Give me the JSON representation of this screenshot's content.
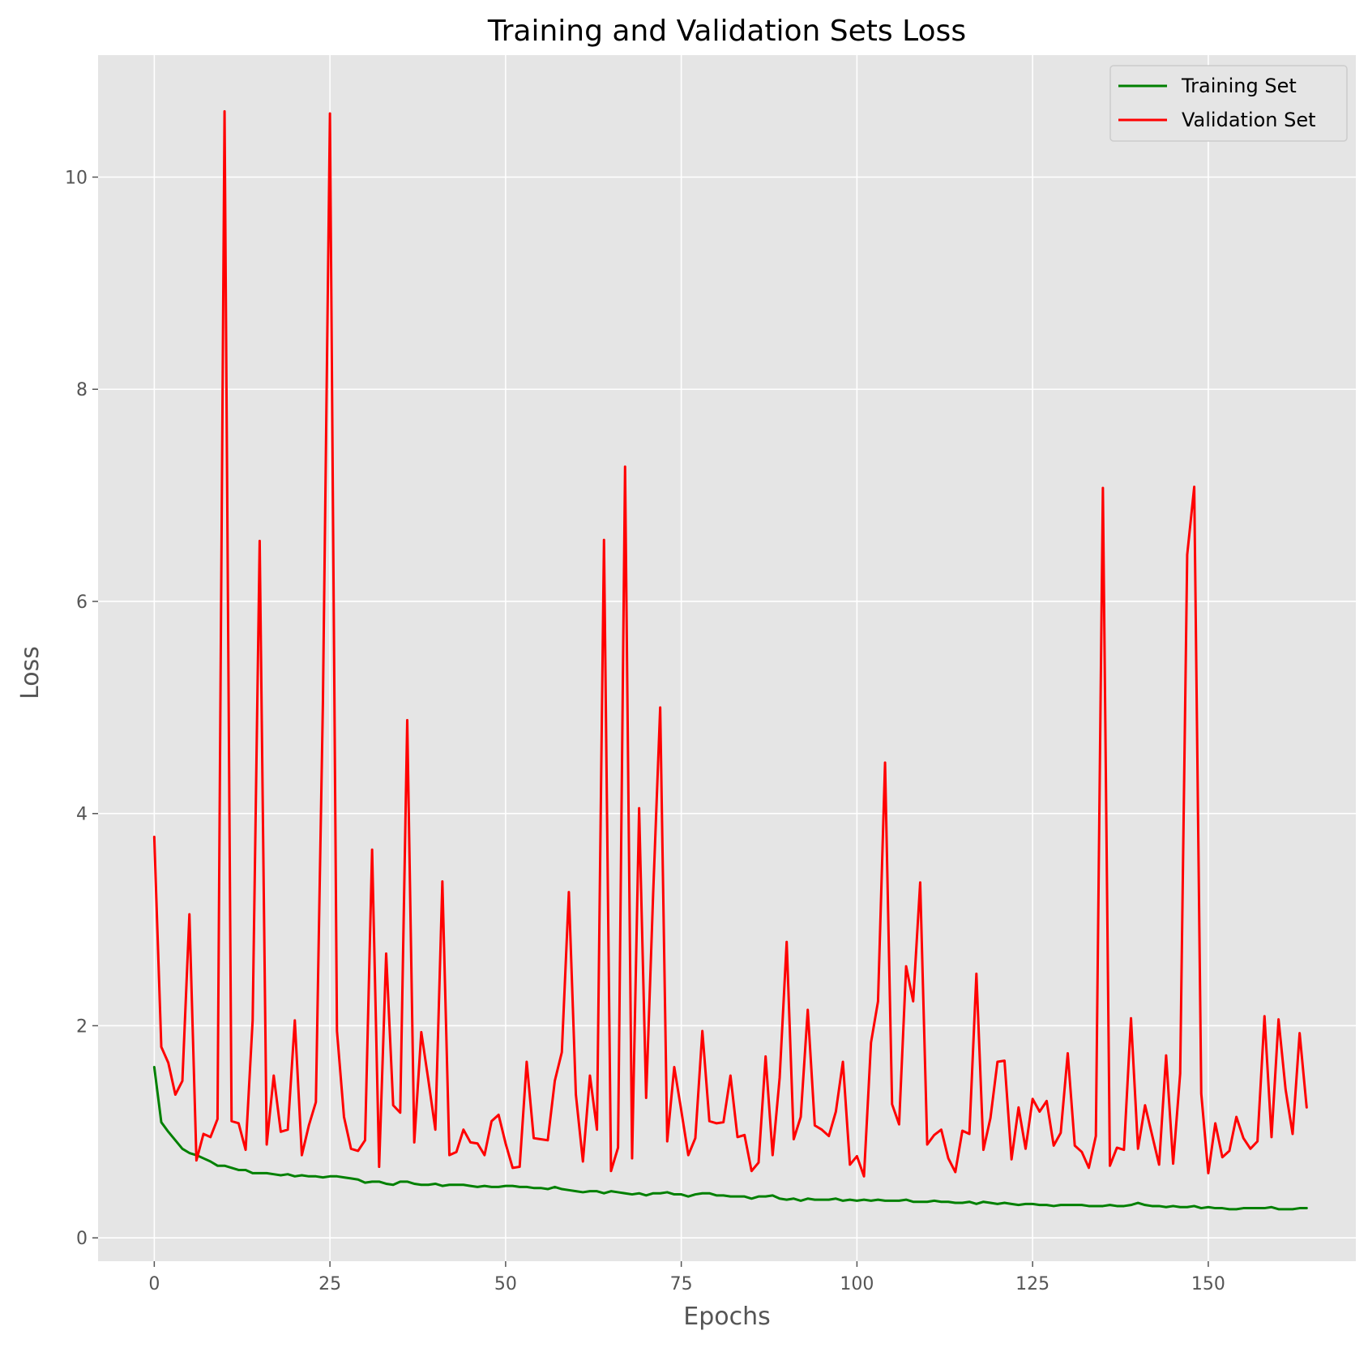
{
  "chart_data": {
    "type": "line",
    "title": "Training and Validation Sets Loss",
    "xlabel": "Epochs",
    "ylabel": "Loss",
    "xlim": [
      -8,
      171
    ],
    "ylim": [
      -0.22,
      11.15
    ],
    "xticks": [
      0,
      25,
      50,
      75,
      100,
      125,
      150
    ],
    "yticks": [
      0,
      2,
      4,
      6,
      8,
      10
    ],
    "grid": true,
    "legend_position": "top-right",
    "series": [
      {
        "name": "Training Set",
        "color": "#008000",
        "x_start": 0,
        "x_step": 1,
        "values": [
          1.61,
          1.09,
          1.0,
          0.92,
          0.84,
          0.8,
          0.78,
          0.75,
          0.72,
          0.68,
          0.68,
          0.66,
          0.64,
          0.64,
          0.61,
          0.61,
          0.61,
          0.6,
          0.59,
          0.6,
          0.58,
          0.59,
          0.58,
          0.58,
          0.57,
          0.58,
          0.58,
          0.57,
          0.56,
          0.55,
          0.52,
          0.53,
          0.53,
          0.51,
          0.5,
          0.53,
          0.53,
          0.51,
          0.5,
          0.5,
          0.51,
          0.49,
          0.5,
          0.5,
          0.5,
          0.49,
          0.48,
          0.49,
          0.48,
          0.48,
          0.49,
          0.49,
          0.48,
          0.48,
          0.47,
          0.47,
          0.46,
          0.48,
          0.46,
          0.45,
          0.44,
          0.43,
          0.44,
          0.44,
          0.42,
          0.44,
          0.43,
          0.42,
          0.41,
          0.42,
          0.4,
          0.42,
          0.42,
          0.43,
          0.41,
          0.41,
          0.39,
          0.41,
          0.42,
          0.42,
          0.4,
          0.4,
          0.39,
          0.39,
          0.39,
          0.37,
          0.39,
          0.39,
          0.4,
          0.37,
          0.36,
          0.37,
          0.35,
          0.37,
          0.36,
          0.36,
          0.36,
          0.37,
          0.35,
          0.36,
          0.35,
          0.36,
          0.35,
          0.36,
          0.35,
          0.35,
          0.35,
          0.36,
          0.34,
          0.34,
          0.34,
          0.35,
          0.34,
          0.34,
          0.33,
          0.33,
          0.34,
          0.32,
          0.34,
          0.33,
          0.32,
          0.33,
          0.32,
          0.31,
          0.32,
          0.32,
          0.31,
          0.31,
          0.3,
          0.31,
          0.31,
          0.31,
          0.31,
          0.3,
          0.3,
          0.3,
          0.31,
          0.3,
          0.3,
          0.31,
          0.33,
          0.31,
          0.3,
          0.3,
          0.29,
          0.3,
          0.29,
          0.29,
          0.3,
          0.28,
          0.29,
          0.28,
          0.28,
          0.27,
          0.27,
          0.28,
          0.28,
          0.28,
          0.28,
          0.29,
          0.27,
          0.27,
          0.27,
          0.28,
          0.28
        ]
      },
      {
        "name": "Validation Set",
        "color": "#ff0000",
        "x_start": 0,
        "x_step": 1,
        "values": [
          3.78,
          1.8,
          1.65,
          1.35,
          1.48,
          3.05,
          0.73,
          0.98,
          0.95,
          1.12,
          10.62,
          1.1,
          1.08,
          0.83,
          2.05,
          6.57,
          0.88,
          1.53,
          1.0,
          1.02,
          2.05,
          0.78,
          1.06,
          1.28,
          5.05,
          10.6,
          1.95,
          1.14,
          0.84,
          0.82,
          0.92,
          3.66,
          0.67,
          2.68,
          1.25,
          1.18,
          4.88,
          0.9,
          1.94,
          1.49,
          1.02,
          3.36,
          0.78,
          0.81,
          1.02,
          0.9,
          0.89,
          0.78,
          1.1,
          1.16,
          0.89,
          0.66,
          0.67,
          1.66,
          0.94,
          0.93,
          0.92,
          1.48,
          1.75,
          3.26,
          1.35,
          0.72,
          1.53,
          1.02,
          6.58,
          0.63,
          0.85,
          7.27,
          0.75,
          4.05,
          1.32,
          3.25,
          5.0,
          0.91,
          1.61,
          1.2,
          0.78,
          0.94,
          1.95,
          1.1,
          1.08,
          1.09,
          1.53,
          0.95,
          0.97,
          0.63,
          0.71,
          1.71,
          0.78,
          1.51,
          2.79,
          0.93,
          1.14,
          2.15,
          1.06,
          1.02,
          0.96,
          1.19,
          1.66,
          0.69,
          0.77,
          0.58,
          1.84,
          2.23,
          4.48,
          1.26,
          1.07,
          2.56,
          2.23,
          3.35,
          0.88,
          0.97,
          1.02,
          0.75,
          0.62,
          1.01,
          0.98,
          2.49,
          0.83,
          1.13,
          1.66,
          1.67,
          0.74,
          1.23,
          0.84,
          1.31,
          1.19,
          1.29,
          0.87,
          0.99,
          1.74,
          0.87,
          0.81,
          0.66,
          0.96,
          7.07,
          0.68,
          0.85,
          0.83,
          2.07,
          0.84,
          1.25,
          0.97,
          0.69,
          1.72,
          0.7,
          1.55,
          6.44,
          7.08,
          1.36,
          0.61,
          1.08,
          0.76,
          0.82,
          1.14,
          0.94,
          0.84,
          0.91,
          2.09,
          0.95,
          2.06,
          1.4,
          0.98,
          1.93,
          1.23
        ]
      }
    ]
  }
}
